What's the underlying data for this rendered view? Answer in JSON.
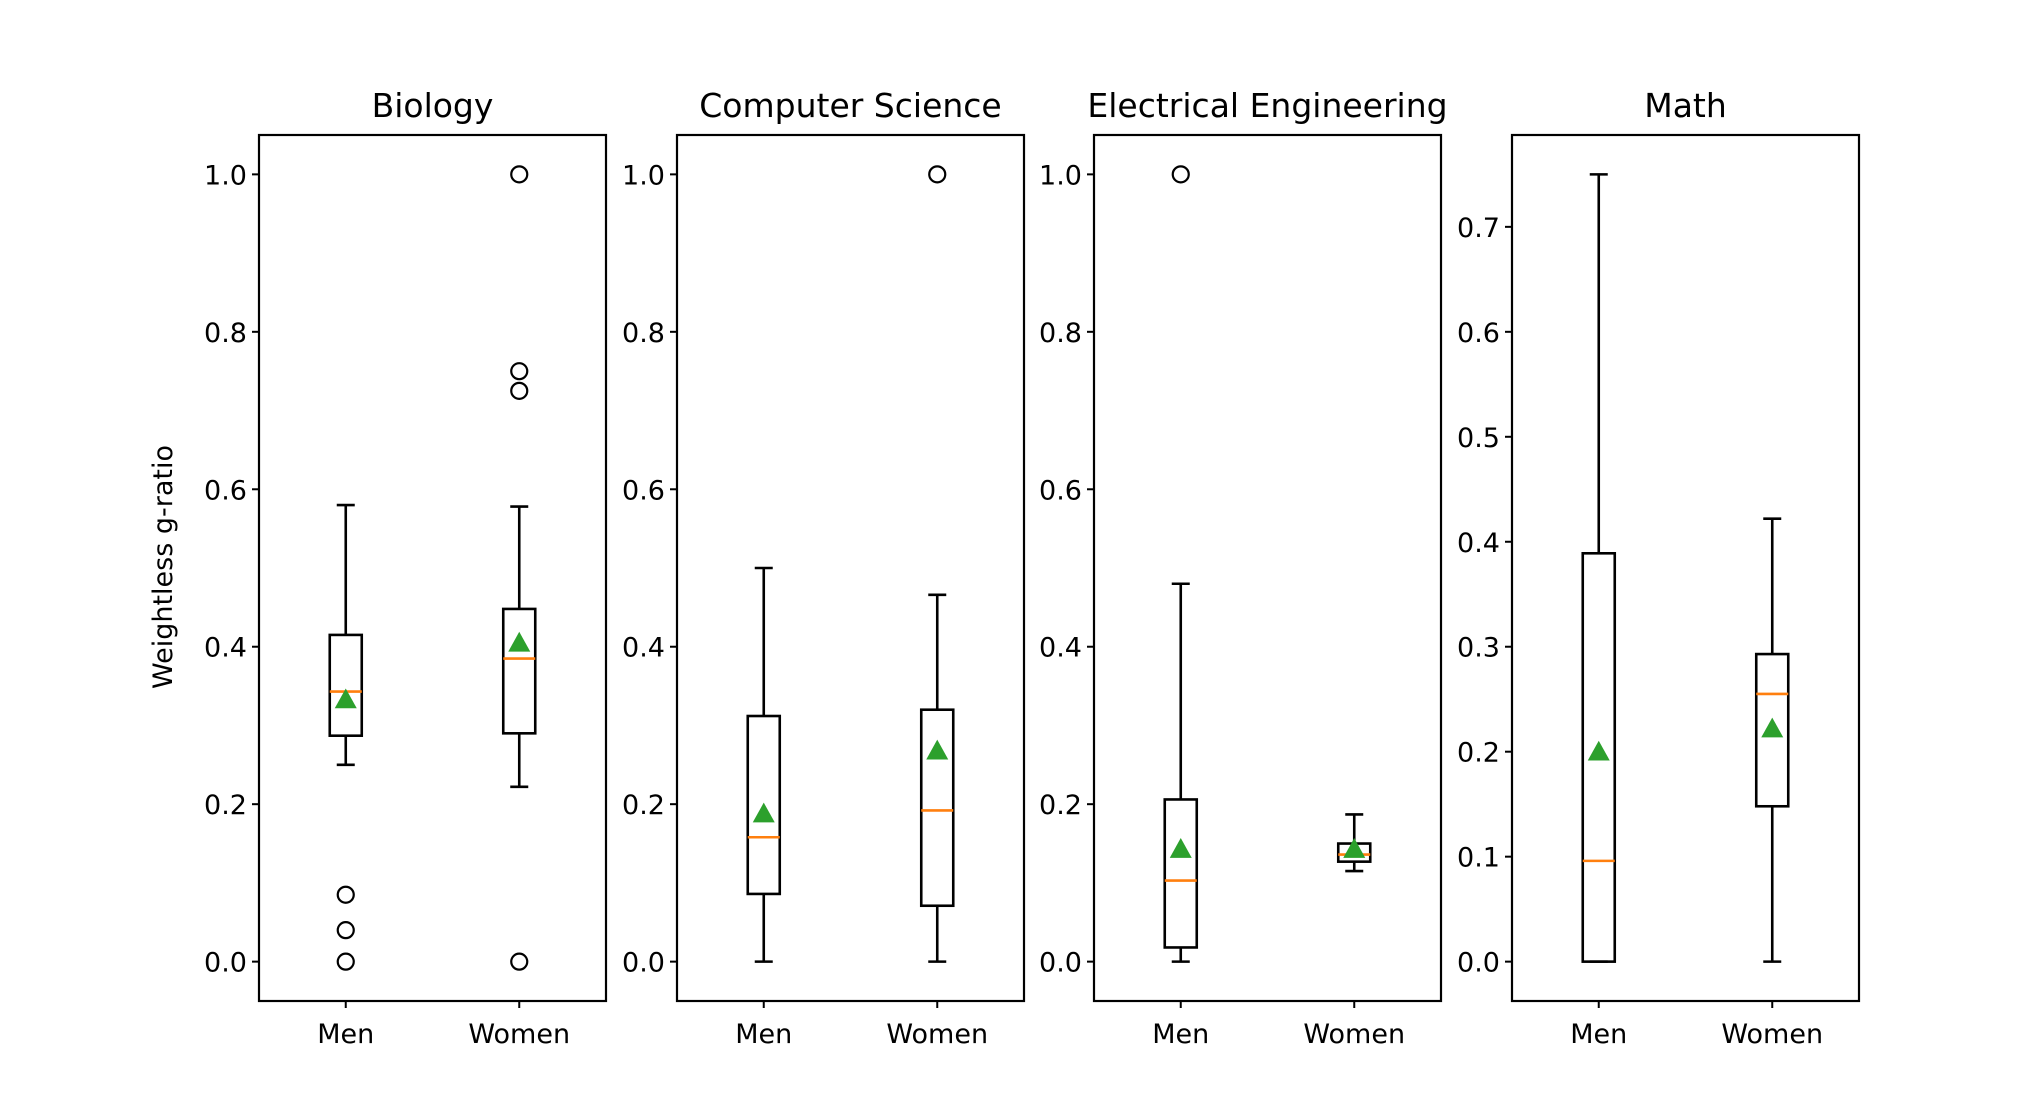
{
  "chart_data": {
    "type": "box",
    "ylabel": "Weightless g-ratio",
    "colors": {
      "box": "#000000",
      "median": "#ff7f0e",
      "mean_marker": "#2ca02c",
      "flier": "#000000"
    },
    "panels": [
      {
        "title": "Biology",
        "ylim": [
          -0.05,
          1.05
        ],
        "yticks": [
          0.0,
          0.2,
          0.4,
          0.6,
          0.8,
          1.0
        ],
        "ytick_labels": [
          "0.0",
          "0.2",
          "0.4",
          "0.6",
          "0.8",
          "1.0"
        ],
        "categories": [
          "Men",
          "Women"
        ],
        "boxes": [
          {
            "whislo": 0.25,
            "q1": 0.287,
            "med": 0.343,
            "q3": 0.415,
            "whishi": 0.58,
            "mean": 0.333,
            "fliers": [
              0.0,
              0.04,
              0.085
            ]
          },
          {
            "whislo": 0.222,
            "q1": 0.29,
            "med": 0.385,
            "q3": 0.448,
            "whishi": 0.578,
            "mean": 0.405,
            "fliers": [
              0.0,
              0.725,
              0.75,
              1.0
            ]
          }
        ]
      },
      {
        "title": "Computer Science",
        "ylim": [
          -0.05,
          1.05
        ],
        "yticks": [
          0.0,
          0.2,
          0.4,
          0.6,
          0.8,
          1.0
        ],
        "ytick_labels": [
          "0.0",
          "0.2",
          "0.4",
          "0.6",
          "0.8",
          "1.0"
        ],
        "categories": [
          "Men",
          "Women"
        ],
        "boxes": [
          {
            "whislo": 0.0,
            "q1": 0.086,
            "med": 0.158,
            "q3": 0.312,
            "whishi": 0.5,
            "mean": 0.188,
            "fliers": []
          },
          {
            "whislo": 0.0,
            "q1": 0.071,
            "med": 0.192,
            "q3": 0.32,
            "whishi": 0.466,
            "mean": 0.268,
            "fliers": [
              1.0
            ]
          }
        ]
      },
      {
        "title": "Electrical Engineering",
        "ylim": [
          -0.05,
          1.05
        ],
        "yticks": [
          0.0,
          0.2,
          0.4,
          0.6,
          0.8,
          1.0
        ],
        "ytick_labels": [
          "0.0",
          "0.2",
          "0.4",
          "0.6",
          "0.8",
          "1.0"
        ],
        "categories": [
          "Men",
          "Women"
        ],
        "boxes": [
          {
            "whislo": 0.0,
            "q1": 0.018,
            "med": 0.103,
            "q3": 0.206,
            "whishi": 0.48,
            "mean": 0.143,
            "fliers": [
              1.0
            ]
          },
          {
            "whislo": 0.115,
            "q1": 0.127,
            "med": 0.136,
            "q3": 0.15,
            "whishi": 0.187,
            "mean": 0.143,
            "fliers": []
          }
        ]
      },
      {
        "title": "Math",
        "ylim": [
          -0.0375,
          0.7875
        ],
        "yticks": [
          0.0,
          0.1,
          0.2,
          0.3,
          0.4,
          0.5,
          0.6,
          0.7
        ],
        "ytick_labels": [
          "0.0",
          "0.1",
          "0.2",
          "0.3",
          "0.4",
          "0.5",
          "0.6",
          "0.7"
        ],
        "categories": [
          "Men",
          "Women"
        ],
        "boxes": [
          {
            "whislo": 0.0,
            "q1": 0.0,
            "med": 0.096,
            "q3": 0.389,
            "whishi": 0.75,
            "mean": 0.2,
            "fliers": []
          },
          {
            "whislo": 0.0,
            "q1": 0.148,
            "med": 0.255,
            "q3": 0.293,
            "whishi": 0.422,
            "mean": 0.222,
            "fliers": []
          }
        ]
      }
    ]
  }
}
